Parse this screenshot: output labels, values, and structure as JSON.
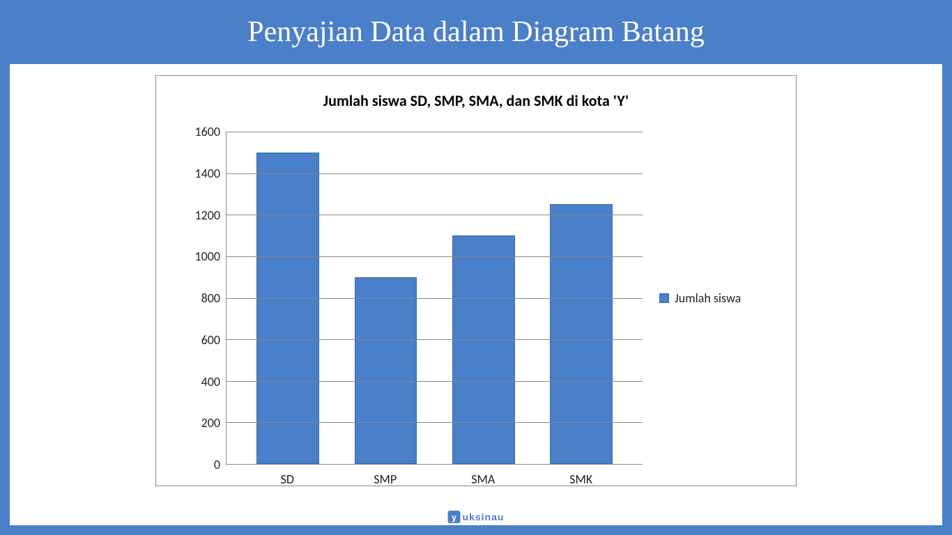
{
  "page": {
    "header_title": "Penyajian Data dalam Diagram Batang",
    "header_bg": "#4a7fc9",
    "header_color": "#ffffff",
    "header_fontsize": 42,
    "content_bg": "#ffffff"
  },
  "chart": {
    "type": "bar",
    "title": "Jumlah siswa SD, SMP, SMA, dan SMK di kota 'Y'",
    "title_fontsize": 22,
    "title_fontweight": "bold",
    "title_color": "#000000",
    "categories": [
      "SD",
      "SMP",
      "SMA",
      "SMK"
    ],
    "values": [
      1500,
      900,
      1100,
      1250
    ],
    "ylim": [
      0,
      1600
    ],
    "ytick_step": 200,
    "yticks": [
      0,
      200,
      400,
      600,
      800,
      1000,
      1200,
      1400,
      1600
    ],
    "bar_color": "#4a7fc9",
    "bar_border_color": "#3a6aa8",
    "bar_width": 0.64,
    "grid_color": "#888888",
    "axis_color": "#888888",
    "background_color": "#ffffff",
    "plot_border_color": "#888888",
    "label_fontsize": 18,
    "label_color": "#222222",
    "legend": {
      "label": "Jumlah siswa",
      "swatch_color": "#4a7fc9",
      "position": "right"
    }
  },
  "watermark": {
    "box_letter": "y",
    "text": "uksinau",
    "box_bg": "#4a7fc9",
    "text_color": "#4a7fc9"
  }
}
